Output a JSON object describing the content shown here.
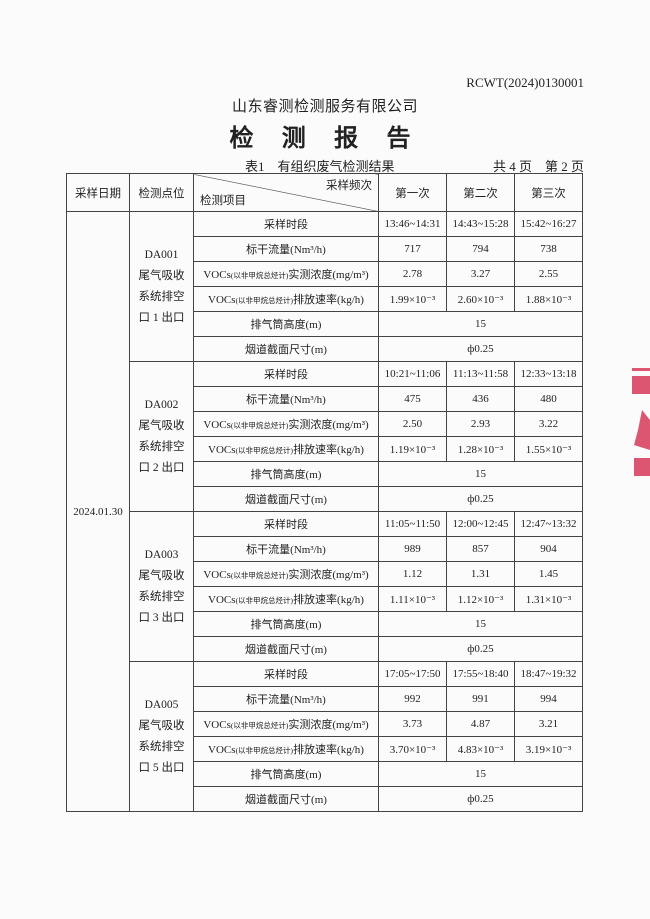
{
  "report_no": "RCWT(2024)0130001",
  "company": "山东睿测检测服务有限公司",
  "title": "检 测 报 告",
  "table_caption": "表1　有组织废气检测结果",
  "page_info": "共 4 页　第 2 页",
  "header": {
    "date": "采样日期",
    "point": "检测点位",
    "freq": "采样频次",
    "item": "检测项目",
    "runs": [
      "第一次",
      "第二次",
      "第三次"
    ]
  },
  "date": "2024.01.30",
  "item_labels": {
    "time": "采样时段",
    "flow": "标干流量(Nm³/h)",
    "conc_prefix": "VOCs",
    "conc_sub": "(以非甲烷总烃计)",
    "conc_suffix": "实测浓度(mg/m³)",
    "rate_prefix": "VOCs",
    "rate_sub": "(以非甲烷总烃计)",
    "rate_suffix": "排放速率(kg/h)",
    "height": "排气筒高度(m)",
    "section": "烟道截面尺寸(m)"
  },
  "groups": [
    {
      "point": [
        "DA001",
        "尾气吸收",
        "系统排空",
        "口 1 出口"
      ],
      "time": [
        "13:46~14:31",
        "14:43~15:28",
        "15:42~16:27"
      ],
      "flow": [
        "717",
        "794",
        "738"
      ],
      "conc": [
        "2.78",
        "3.27",
        "2.55"
      ],
      "rate": [
        "1.99×10⁻³",
        "2.60×10⁻³",
        "1.88×10⁻³"
      ],
      "height": "15",
      "section": "ф0.25"
    },
    {
      "point": [
        "DA002",
        "尾气吸收",
        "系统排空",
        "口 2 出口"
      ],
      "time": [
        "10:21~11:06",
        "11:13~11:58",
        "12:33~13:18"
      ],
      "flow": [
        "475",
        "436",
        "480"
      ],
      "conc": [
        "2.50",
        "2.93",
        "3.22"
      ],
      "rate": [
        "1.19×10⁻³",
        "1.28×10⁻³",
        "1.55×10⁻³"
      ],
      "height": "15",
      "section": "ф0.25"
    },
    {
      "point": [
        "DA003",
        "尾气吸收",
        "系统排空",
        "口 3 出口"
      ],
      "time": [
        "11:05~11:50",
        "12:00~12:45",
        "12:47~13:32"
      ],
      "flow": [
        "989",
        "857",
        "904"
      ],
      "conc": [
        "1.12",
        "1.31",
        "1.45"
      ],
      "rate": [
        "1.11×10⁻³",
        "1.12×10⁻³",
        "1.31×10⁻³"
      ],
      "height": "15",
      "section": "ф0.25"
    },
    {
      "point": [
        "DA005",
        "尾气吸收",
        "系统排空",
        "口 5 出口"
      ],
      "time": [
        "17:05~17:50",
        "17:55~18:40",
        "18:47~19:32"
      ],
      "flow": [
        "992",
        "991",
        "994"
      ],
      "conc": [
        "3.73",
        "4.87",
        "3.21"
      ],
      "rate": [
        "3.70×10⁻³",
        "4.83×10⁻³",
        "3.19×10⁻³"
      ],
      "height": "15",
      "section": "ф0.25"
    }
  ],
  "stamp_color": "#d83a5a"
}
